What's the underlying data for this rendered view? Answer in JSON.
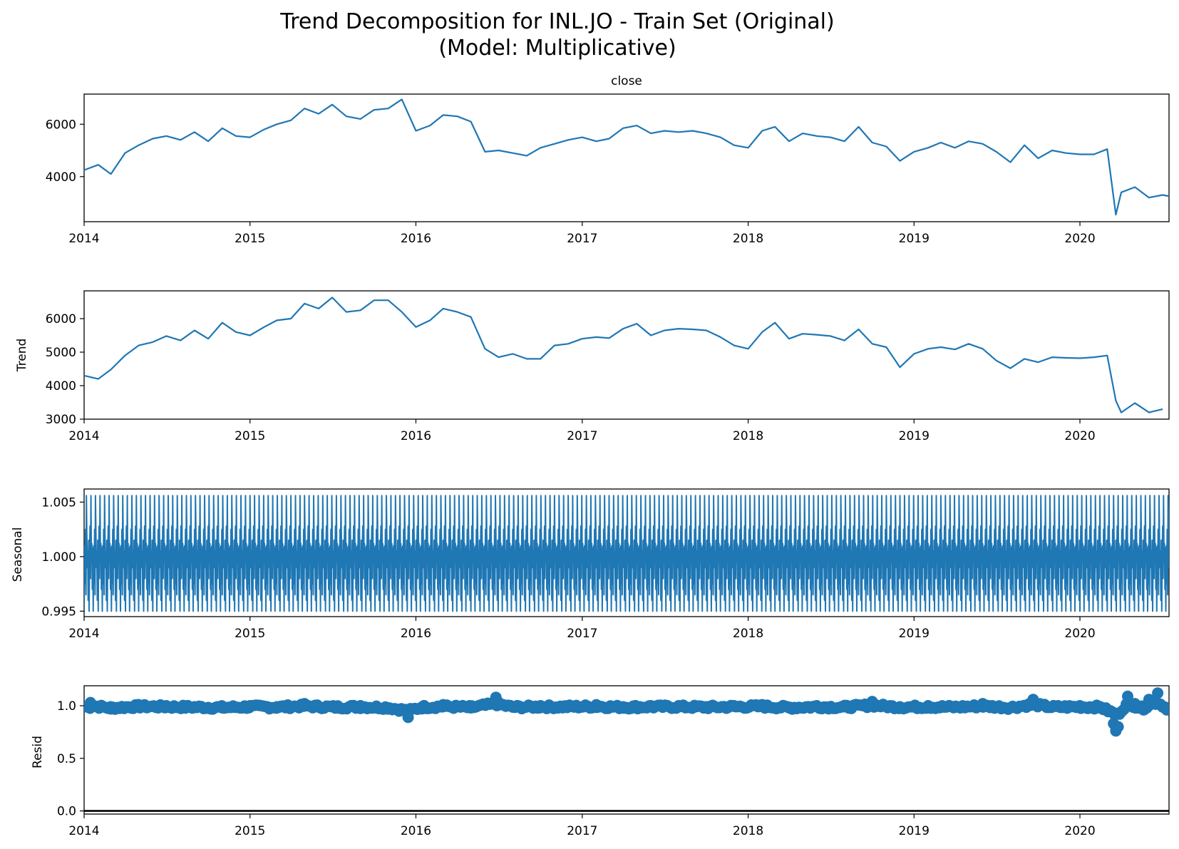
{
  "figure": {
    "title_line1": "Trend Decomposition for INL.JO - Train Set (Original)",
    "title_line2": "(Model: Multiplicative)"
  },
  "colors": {
    "series": "#1f77b4",
    "axes": "#000000",
    "background": "#ffffff"
  },
  "chart_data": [
    {
      "type": "line",
      "panel": "observed",
      "title": "close",
      "ylabel": "",
      "x_ticks": [
        "2014",
        "2015",
        "2016",
        "2017",
        "2018",
        "2019",
        "2020"
      ],
      "xlim": [
        "2014-01-01",
        "2020-07-15"
      ],
      "ylim": [
        2280,
        7150
      ],
      "y_ticks": [
        4000,
        6000
      ],
      "y_tick_labels": [
        "4000",
        "6000"
      ],
      "x": [
        "2014-01-01",
        "2014-02-01",
        "2014-03-01",
        "2014-04-01",
        "2014-05-01",
        "2014-06-01",
        "2014-07-01",
        "2014-08-01",
        "2014-09-01",
        "2014-10-01",
        "2014-11-01",
        "2014-12-01",
        "2015-01-01",
        "2015-02-01",
        "2015-03-01",
        "2015-04-01",
        "2015-05-01",
        "2015-06-01",
        "2015-07-01",
        "2015-08-01",
        "2015-09-01",
        "2015-10-01",
        "2015-11-01",
        "2015-12-01",
        "2016-01-01",
        "2016-02-01",
        "2016-03-01",
        "2016-04-01",
        "2016-05-01",
        "2016-06-01",
        "2016-07-01",
        "2016-08-01",
        "2016-09-01",
        "2016-10-01",
        "2016-11-01",
        "2016-12-01",
        "2017-01-01",
        "2017-02-01",
        "2017-03-01",
        "2017-04-01",
        "2017-05-01",
        "2017-06-01",
        "2017-07-01",
        "2017-08-01",
        "2017-09-01",
        "2017-10-01",
        "2017-11-01",
        "2017-12-01",
        "2018-01-01",
        "2018-02-01",
        "2018-03-01",
        "2018-04-01",
        "2018-05-01",
        "2018-06-01",
        "2018-07-01",
        "2018-08-01",
        "2018-09-01",
        "2018-10-01",
        "2018-11-01",
        "2018-12-01",
        "2019-01-01",
        "2019-02-01",
        "2019-03-01",
        "2019-04-01",
        "2019-05-01",
        "2019-06-01",
        "2019-07-01",
        "2019-08-01",
        "2019-09-01",
        "2019-10-01",
        "2019-11-01",
        "2019-12-01",
        "2020-01-01",
        "2020-02-01",
        "2020-03-01",
        "2020-03-20",
        "2020-04-01",
        "2020-05-01",
        "2020-06-01",
        "2020-07-01",
        "2020-07-15"
      ],
      "values": [
        4250,
        4450,
        4100,
        4900,
        5200,
        5450,
        5550,
        5400,
        5700,
        5350,
        5850,
        5550,
        5500,
        5800,
        6000,
        6150,
        6600,
        6400,
        6750,
        6300,
        6200,
        6550,
        6600,
        6950,
        5750,
        5950,
        6350,
        6300,
        6100,
        4950,
        5000,
        4900,
        4800,
        5100,
        5250,
        5400,
        5500,
        5350,
        5450,
        5850,
        5950,
        5650,
        5750,
        5700,
        5750,
        5650,
        5500,
        5200,
        5100,
        5750,
        5900,
        5350,
        5650,
        5550,
        5500,
        5350,
        5900,
        5300,
        5150,
        4600,
        4950,
        5100,
        5300,
        5100,
        5350,
        5250,
        4950,
        4550,
        5200,
        4700,
        5000,
        4900,
        4850,
        4850,
        5050,
        2550,
        3400,
        3600,
        3200,
        3300,
        3250
      ]
    },
    {
      "type": "line",
      "panel": "trend",
      "title": "",
      "ylabel": "Trend",
      "x_ticks": [
        "2014",
        "2015",
        "2016",
        "2017",
        "2018",
        "2019",
        "2020"
      ],
      "xlim": [
        "2014-01-01",
        "2020-07-15"
      ],
      "ylim": [
        3000,
        6830
      ],
      "y_ticks": [
        3000,
        4000,
        5000,
        6000
      ],
      "y_tick_labels": [
        "3000",
        "4000",
        "5000",
        "6000"
      ],
      "x": [
        "2014-01-01",
        "2014-02-01",
        "2014-03-01",
        "2014-04-01",
        "2014-05-01",
        "2014-06-01",
        "2014-07-01",
        "2014-08-01",
        "2014-09-01",
        "2014-10-01",
        "2014-11-01",
        "2014-12-01",
        "2015-01-01",
        "2015-02-01",
        "2015-03-01",
        "2015-04-01",
        "2015-05-01",
        "2015-06-01",
        "2015-07-01",
        "2015-08-01",
        "2015-09-01",
        "2015-10-01",
        "2015-11-01",
        "2015-12-01",
        "2016-01-01",
        "2016-02-01",
        "2016-03-01",
        "2016-04-01",
        "2016-05-01",
        "2016-06-01",
        "2016-07-01",
        "2016-08-01",
        "2016-09-01",
        "2016-10-01",
        "2016-11-01",
        "2016-12-01",
        "2017-01-01",
        "2017-02-01",
        "2017-03-01",
        "2017-04-01",
        "2017-05-01",
        "2017-06-01",
        "2017-07-01",
        "2017-08-01",
        "2017-09-01",
        "2017-10-01",
        "2017-11-01",
        "2017-12-01",
        "2018-01-01",
        "2018-02-01",
        "2018-03-01",
        "2018-04-01",
        "2018-05-01",
        "2018-06-01",
        "2018-07-01",
        "2018-08-01",
        "2018-09-01",
        "2018-10-01",
        "2018-11-01",
        "2018-12-01",
        "2019-01-01",
        "2019-02-01",
        "2019-03-01",
        "2019-04-01",
        "2019-05-01",
        "2019-06-01",
        "2019-07-01",
        "2019-08-01",
        "2019-09-01",
        "2019-10-01",
        "2019-11-01",
        "2019-12-01",
        "2020-01-01",
        "2020-02-01",
        "2020-03-01",
        "2020-03-20",
        "2020-04-01",
        "2020-05-01",
        "2020-06-01",
        "2020-07-01"
      ],
      "values": [
        4300,
        4200,
        4480,
        4900,
        5200,
        5300,
        5480,
        5350,
        5650,
        5400,
        5880,
        5600,
        5500,
        5750,
        5950,
        6000,
        6450,
        6300,
        6630,
        6200,
        6250,
        6550,
        6550,
        6200,
        5750,
        5950,
        6300,
        6200,
        6050,
        5100,
        4850,
        4950,
        4800,
        4800,
        5200,
        5250,
        5400,
        5450,
        5420,
        5700,
        5850,
        5500,
        5650,
        5700,
        5680,
        5650,
        5450,
        5200,
        5100,
        5600,
        5880,
        5400,
        5550,
        5520,
        5480,
        5350,
        5680,
        5250,
        5150,
        4550,
        4950,
        5100,
        5150,
        5080,
        5250,
        5100,
        4750,
        4520,
        4800,
        4700,
        4850,
        4830,
        4820,
        4850,
        4900,
        3550,
        3200,
        3480,
        3200,
        3300
      ]
    },
    {
      "type": "line",
      "panel": "seasonal",
      "title": "",
      "ylabel": "Seasonal",
      "x_ticks": [
        "2014",
        "2015",
        "2016",
        "2017",
        "2018",
        "2019",
        "2020"
      ],
      "xlim": [
        "2014-01-01",
        "2020-07-15"
      ],
      "ylim": [
        0.9945,
        1.0062
      ],
      "y_ticks": [
        0.995,
        1.0,
        1.005
      ],
      "y_tick_labels": [
        "0.995",
        "1.000",
        "1.005"
      ],
      "period_days": 20,
      "cycle_values": [
        0.995,
        1.001,
        0.9975,
        1.0025,
        0.9965,
        1.0056,
        1.002,
        0.999,
        1.0005,
        0.996,
        1.0015,
        0.995,
        1.0,
        1.0028,
        0.998,
        1.0056,
        0.9995,
        1.0012,
        0.997,
        1.0008
      ]
    },
    {
      "type": "scatter",
      "panel": "resid",
      "title": "",
      "ylabel": "Resid",
      "x_ticks": [
        "2014",
        "2015",
        "2016",
        "2017",
        "2018",
        "2019",
        "2020"
      ],
      "xlim": [
        "2014-01-01",
        "2020-07-15"
      ],
      "ylim": [
        -0.03,
        1.19
      ],
      "y_ticks": [
        0.0,
        0.5,
        1.0
      ],
      "y_tick_labels": [
        "0.0",
        "0.5",
        "1.0"
      ],
      "baseline": 0.0,
      "x": [
        "2014-01-15",
        "2014-03-01",
        "2014-05-01",
        "2014-07-01",
        "2014-09-01",
        "2014-11-01",
        "2015-01-01",
        "2015-03-01",
        "2015-05-01",
        "2015-07-01",
        "2015-09-01",
        "2015-11-01",
        "2015-12-15",
        "2016-01-15",
        "2016-03-01",
        "2016-05-01",
        "2016-06-25",
        "2016-08-01",
        "2016-10-01",
        "2016-12-01",
        "2017-02-01",
        "2017-04-01",
        "2017-06-01",
        "2017-08-01",
        "2017-10-01",
        "2017-12-01",
        "2018-02-01",
        "2018-04-01",
        "2018-06-01",
        "2018-08-01",
        "2018-10-01",
        "2018-12-01",
        "2019-02-01",
        "2019-04-01",
        "2019-06-01",
        "2019-08-01",
        "2019-09-20",
        "2019-11-01",
        "2020-01-01",
        "2020-02-15",
        "2020-03-15",
        "2020-03-20",
        "2020-03-25",
        "2020-04-15",
        "2020-05-01",
        "2020-05-20",
        "2020-06-01",
        "2020-06-20",
        "2020-07-10"
      ],
      "values": [
        1.03,
        0.97,
        1.01,
        1.0,
        0.99,
        0.98,
        1.0,
        0.99,
        1.02,
        0.99,
        1.0,
        0.98,
        0.89,
        0.99,
        1.01,
        0.98,
        1.08,
        0.99,
        1.0,
        1.0,
        1.01,
        0.99,
        1.0,
        1.0,
        0.99,
        1.0,
        1.01,
        0.98,
        1.0,
        0.99,
        1.04,
        0.99,
        1.0,
        0.99,
        1.02,
        0.98,
        1.06,
        0.99,
        1.0,
        0.99,
        0.83,
        0.76,
        0.8,
        1.09,
        1.02,
        0.96,
        1.06,
        1.12,
        0.96
      ]
    }
  ]
}
